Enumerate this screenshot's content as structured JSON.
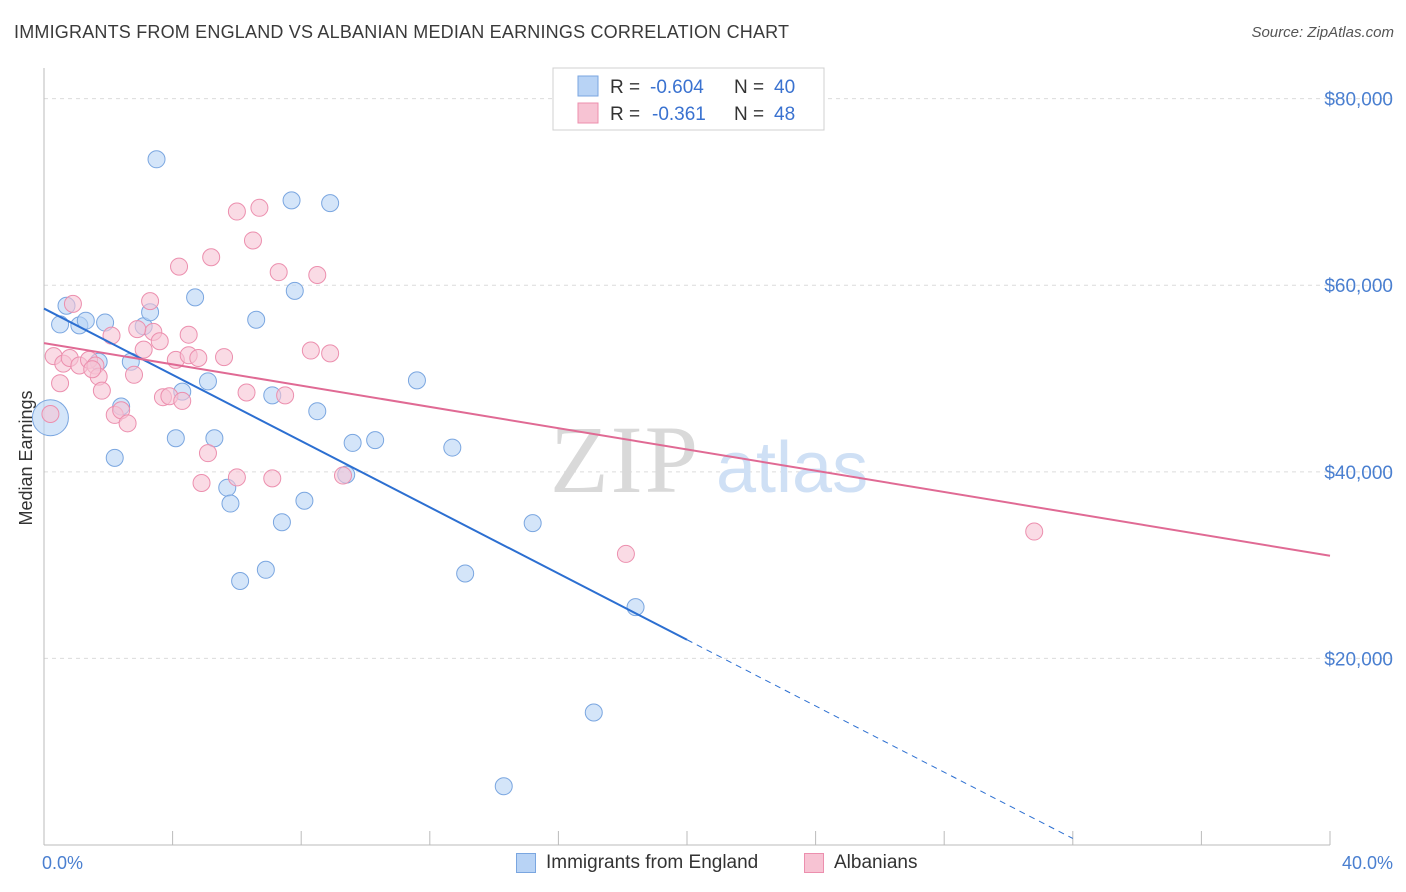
{
  "title": "IMMIGRANTS FROM ENGLAND VS ALBANIAN MEDIAN EARNINGS CORRELATION CHART",
  "source": "Source: ZipAtlas.com",
  "watermark": {
    "zip": "ZIP",
    "atlas": "atlas"
  },
  "colors": {
    "blue_fill": "#b8d3f5",
    "blue_stroke": "#7aa6e0",
    "blue_line": "#2c6fd1",
    "pink_fill": "#f7c3d3",
    "pink_stroke": "#ec8fae",
    "pink_line": "#e06a94",
    "axis_label": "#4a7fd0",
    "grid": "#dcdcdc"
  },
  "stats_legend": {
    "rows": [
      {
        "r_label": "R =",
        "r_value": "-0.604",
        "n_label": "N =",
        "n_value": "40"
      },
      {
        "r_label": "R =",
        "r_value": "-0.361",
        "n_label": "N =",
        "n_value": "48"
      }
    ]
  },
  "bottom_legend": [
    "Immigrants from England",
    "Albanians"
  ],
  "chart_data": {
    "type": "scatter",
    "ylabel": "Median Earnings",
    "x_tick_labels": [
      "0.0%",
      "40.0%"
    ],
    "y_tick_labels": [
      "$20,000",
      "$40,000",
      "$60,000",
      "$80,000"
    ],
    "y_ticks": [
      20000,
      40000,
      60000,
      80000
    ],
    "xlim": [
      0,
      40
    ],
    "ylim": [
      0,
      82000
    ],
    "grid": true,
    "legend_placement": "top-center",
    "series": [
      {
        "name": "Immigrants from England",
        "color": "#b8d3f5",
        "points": [
          [
            0.2,
            45800
          ],
          [
            0.5,
            55800
          ],
          [
            0.7,
            57800
          ],
          [
            1.1,
            55700
          ],
          [
            1.3,
            56200
          ],
          [
            1.9,
            56000
          ],
          [
            1.7,
            51800
          ],
          [
            2.2,
            41500
          ],
          [
            2.4,
            47000
          ],
          [
            2.7,
            51800
          ],
          [
            3.1,
            55600
          ],
          [
            3.3,
            57100
          ],
          [
            3.5,
            73500
          ],
          [
            4.1,
            43600
          ],
          [
            4.3,
            48600
          ],
          [
            4.7,
            58700
          ],
          [
            5.1,
            49700
          ],
          [
            5.3,
            43600
          ],
          [
            5.7,
            38300
          ],
          [
            5.8,
            36600
          ],
          [
            6.1,
            28300
          ],
          [
            6.6,
            56300
          ],
          [
            6.9,
            29500
          ],
          [
            7.1,
            48200
          ],
          [
            7.4,
            34600
          ],
          [
            7.7,
            69100
          ],
          [
            7.8,
            59400
          ],
          [
            8.1,
            36900
          ],
          [
            8.5,
            46500
          ],
          [
            8.9,
            68800
          ],
          [
            9.4,
            39700
          ],
          [
            9.6,
            43100
          ],
          [
            10.3,
            43400
          ],
          [
            11.6,
            49800
          ],
          [
            12.7,
            42600
          ],
          [
            13.1,
            29100
          ],
          [
            15.2,
            34500
          ],
          [
            17.1,
            14200
          ],
          [
            18.4,
            25500
          ],
          [
            14.3,
            6300
          ]
        ]
      },
      {
        "name": "Albanians",
        "color": "#f7c3d3",
        "points": [
          [
            0.2,
            46200
          ],
          [
            0.3,
            52400
          ],
          [
            0.5,
            49500
          ],
          [
            0.6,
            51600
          ],
          [
            0.8,
            52200
          ],
          [
            0.9,
            58000
          ],
          [
            1.1,
            51400
          ],
          [
            1.4,
            52000
          ],
          [
            1.6,
            51400
          ],
          [
            1.7,
            50200
          ],
          [
            1.8,
            48700
          ],
          [
            2.1,
            54600
          ],
          [
            2.2,
            46100
          ],
          [
            2.4,
            46600
          ],
          [
            2.6,
            45200
          ],
          [
            2.8,
            50400
          ],
          [
            3.1,
            53100
          ],
          [
            3.3,
            58300
          ],
          [
            3.4,
            55000
          ],
          [
            3.6,
            54000
          ],
          [
            3.7,
            48000
          ],
          [
            3.9,
            48100
          ],
          [
            4.1,
            52000
          ],
          [
            4.3,
            47600
          ],
          [
            4.2,
            62000
          ],
          [
            4.5,
            52500
          ],
          [
            4.5,
            54700
          ],
          [
            4.9,
            38800
          ],
          [
            5.1,
            42000
          ],
          [
            5.2,
            63000
          ],
          [
            5.6,
            52300
          ],
          [
            6.0,
            39400
          ],
          [
            6.0,
            67900
          ],
          [
            6.3,
            48500
          ],
          [
            6.5,
            64800
          ],
          [
            6.7,
            68300
          ],
          [
            7.1,
            39300
          ],
          [
            7.3,
            61400
          ],
          [
            7.5,
            48200
          ],
          [
            8.3,
            53000
          ],
          [
            8.5,
            61100
          ],
          [
            8.9,
            52700
          ],
          [
            9.3,
            39600
          ],
          [
            18.1,
            31200
          ],
          [
            30.8,
            33600
          ],
          [
            1.5,
            51000
          ],
          [
            2.9,
            55300
          ],
          [
            4.8,
            52200
          ]
        ]
      }
    ],
    "trend_lines": [
      {
        "series": "Immigrants from England",
        "x0": 0,
        "y0": 57500,
        "x1": 20,
        "y1": 22000,
        "dashed_to_x": 32,
        "dashed_to_y": 700
      },
      {
        "series": "Albanians",
        "x0": 0,
        "y0": 53800,
        "x1": 40,
        "y1": 31000
      }
    ]
  }
}
